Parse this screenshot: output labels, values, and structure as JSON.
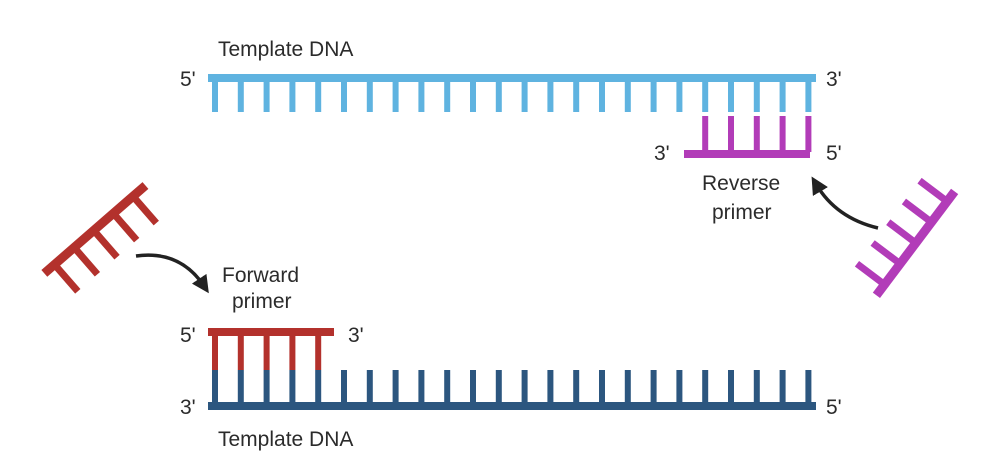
{
  "top_strand": {
    "label": "Template DNA",
    "left_end": "5'",
    "right_end": "3'",
    "color": "#5fb3e0"
  },
  "bottom_strand": {
    "label": "Template DNA",
    "left_end": "3'",
    "right_end": "5'",
    "color": "#2c567f"
  },
  "forward_primer": {
    "label_line1": "Forward",
    "label_line2": "primer",
    "left_end": "5'",
    "right_end": "3'",
    "color": "#b3312c"
  },
  "reverse_primer": {
    "label_line1": "Reverse",
    "label_line2": "primer",
    "left_end": "3'",
    "right_end": "5'",
    "color": "#b23cb8"
  },
  "arrow_color": "#222222"
}
